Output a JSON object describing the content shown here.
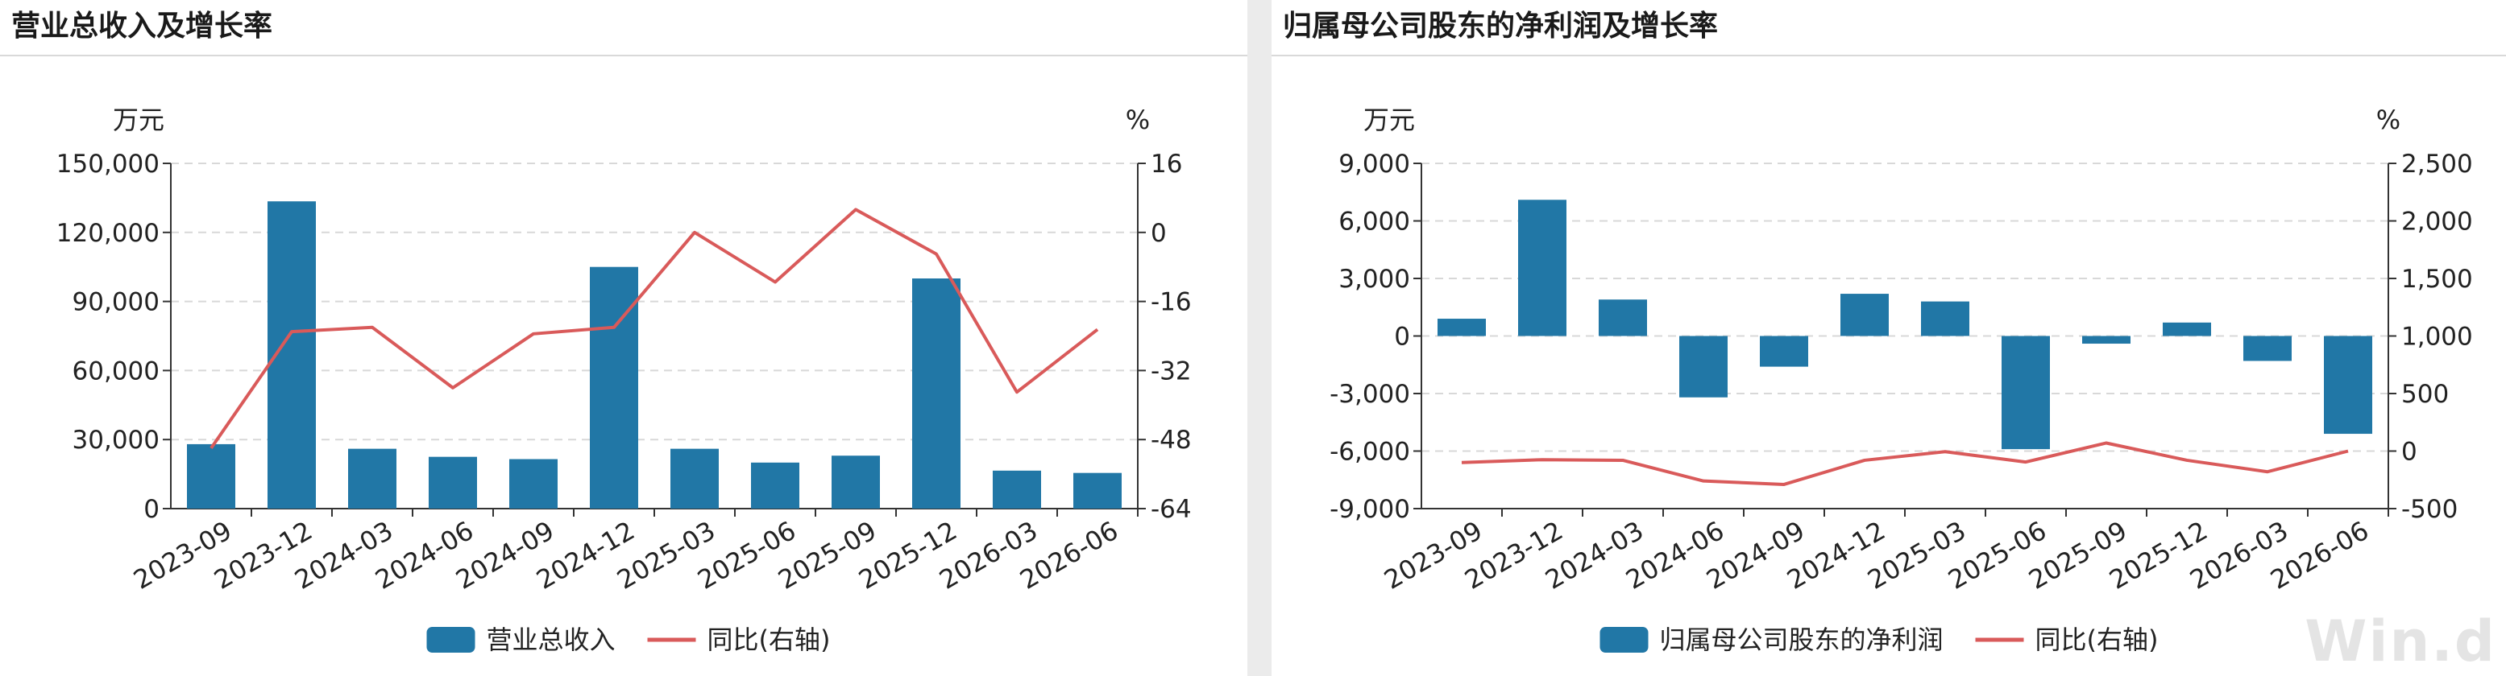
{
  "chart_data": [
    {
      "type": "bar+line",
      "title": "营业总收入及增长率",
      "y_unit_left": "万元",
      "y_unit_right": "%",
      "categories": [
        "2023-09",
        "2023-12",
        "2024-03",
        "2024-06",
        "2024-09",
        "2024-12",
        "2025-03",
        "2025-06",
        "2025-09",
        "2025-12",
        "2026-03",
        "2026-06"
      ],
      "ylim_left": [
        0,
        150000
      ],
      "yticks_left": [
        0,
        30000,
        60000,
        90000,
        120000,
        150000
      ],
      "ytick_labels_left": [
        "0",
        "30,000",
        "60,000",
        "90,000",
        "120,000",
        "150,000"
      ],
      "ylim_right": [
        -64,
        16
      ],
      "yticks_right": [
        -64,
        -48,
        -32,
        -16,
        0,
        16
      ],
      "ytick_labels_right": [
        "-64",
        "-48",
        "-32",
        "-16",
        "0",
        "16"
      ],
      "grid": true,
      "legend_position": "bottom-center",
      "series": [
        {
          "name": "营业总收入",
          "kind": "bar",
          "axis": "left",
          "color": "#2177a6",
          "values": [
            28000,
            133500,
            26000,
            22500,
            21500,
            105000,
            26000,
            20000,
            23000,
            100000,
            16500,
            15500
          ]
        },
        {
          "name": "同比(右轴)",
          "kind": "line",
          "axis": "right",
          "color": "#d95a5a",
          "values": [
            -50,
            -23,
            -22,
            -36,
            -23.5,
            -22,
            0,
            -11.5,
            5.3,
            -5,
            -37,
            -22.5
          ]
        }
      ]
    },
    {
      "type": "bar+line",
      "title": "归属母公司股东的净利润及增长率",
      "y_unit_left": "万元",
      "y_unit_right": "%",
      "categories": [
        "2023-09",
        "2023-12",
        "2024-03",
        "2024-06",
        "2024-09",
        "2024-12",
        "2025-03",
        "2025-06",
        "2025-09",
        "2025-12",
        "2026-03",
        "2026-06"
      ],
      "ylim_left": [
        -9000,
        9000
      ],
      "yticks_left": [
        -9000,
        -6000,
        -3000,
        0,
        3000,
        6000,
        9000
      ],
      "ytick_labels_left": [
        "-9,000",
        "-6,000",
        "-3,000",
        "0",
        "3,000",
        "6,000",
        "9,000"
      ],
      "ylim_right": [
        -500,
        2500
      ],
      "yticks_right": [
        -500,
        0,
        500,
        1000,
        1500,
        2000,
        2500
      ],
      "ytick_labels_right": [
        "-500",
        "0",
        "500",
        "1,000",
        "1,500",
        "2,000",
        "2,500"
      ],
      "grid": true,
      "legend_position": "bottom-center",
      "series": [
        {
          "name": "归属母公司股东的净利润",
          "kind": "bar",
          "axis": "left",
          "color": "#2177a6",
          "values": [
            900,
            7100,
            1900,
            -3200,
            -1600,
            2200,
            1800,
            -5900,
            -400,
            700,
            -1300,
            -5100
          ]
        },
        {
          "name": "同比(右轴)",
          "kind": "line",
          "axis": "right",
          "color": "#d95a5a",
          "values": [
            -100,
            -75,
            -80,
            -260,
            -290,
            -80,
            -5,
            -95,
            70,
            -80,
            -180,
            0
          ]
        }
      ]
    }
  ],
  "watermark": "Win.d"
}
